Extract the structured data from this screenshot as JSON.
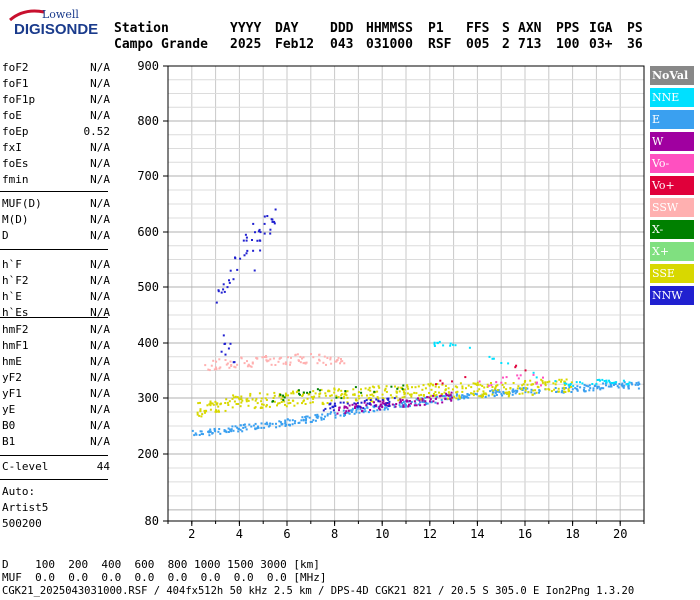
{
  "logo": {
    "line1": "Lowell",
    "line2": "DIGISONDE"
  },
  "header": {
    "labels": [
      "Station",
      "YYYY",
      "DAY",
      "DDD",
      "HHMMSS",
      "P1",
      "FFS",
      "S",
      "AXN",
      "PPS",
      "IGA",
      "PS"
    ],
    "values": [
      "Campo Grande",
      "2025",
      "Feb12",
      "043",
      "031000",
      "RSF",
      "005",
      "2",
      "713",
      "100",
      "03+",
      "36"
    ]
  },
  "params": [
    {
      "group": [
        {
          "name": "foF2",
          "value": "N/A"
        },
        {
          "name": "foF1",
          "value": "N/A"
        },
        {
          "name": "foF1p",
          "value": "N/A"
        },
        {
          "name": "foE",
          "value": "N/A"
        },
        {
          "name": "foEp",
          "value": "0.52"
        },
        {
          "name": "fxI",
          "value": "N/A"
        },
        {
          "name": "foEs",
          "value": "N/A"
        },
        {
          "name": "fmin",
          "value": "N/A"
        }
      ]
    },
    {
      "group": [
        {
          "name": "MUF(D)",
          "value": "N/A"
        },
        {
          "name": "M(D)",
          "value": "N/A"
        },
        {
          "name": "D",
          "value": "N/A"
        }
      ]
    },
    {
      "group": [
        {
          "name": "h`F",
          "value": "N/A"
        },
        {
          "name": "h`F2",
          "value": "N/A"
        },
        {
          "name": "h`E",
          "value": "N/A"
        },
        {
          "name": "h`Es",
          "value": "N/A"
        }
      ]
    },
    {
      "group": [
        {
          "name": "hmF2",
          "value": "N/A"
        },
        {
          "name": "hmF1",
          "value": "N/A"
        },
        {
          "name": "hmE",
          "value": "N/A"
        },
        {
          "name": "yF2",
          "value": "N/A"
        },
        {
          "name": "yF1",
          "value": "N/A"
        },
        {
          "name": "yE",
          "value": "N/A"
        },
        {
          "name": "B0",
          "value": "N/A"
        },
        {
          "name": "B1",
          "value": "N/A"
        }
      ]
    },
    {
      "group": [
        {
          "name": "C-level",
          "value": "44"
        }
      ]
    }
  ],
  "auto": [
    "Auto:",
    "Artist5",
    "500200"
  ],
  "footer": {
    "d_row": "D    100  200  400  600  800 1000 1500 3000 [km]",
    "muf_row": "MUF  0.0  0.0  0.0  0.0  0.0  0.0  0.0  0.0 [MHz]",
    "file_row": "CGK21_2025043031000.RSF / 404fx512h 50 kHz 2.5 km / DPS-4D CGK21 821 / 20.5 S 305.0 E Ion2Png 1.3.20"
  },
  "legend": [
    {
      "label": "NoVal",
      "bg": "#888888",
      "fg": "#ffffff"
    },
    {
      "label": "NNE",
      "bg": "#00e0ff",
      "fg": "#ffffff"
    },
    {
      "label": "E",
      "bg": "#3aa0f0",
      "fg": "#ffffff"
    },
    {
      "label": "W",
      "bg": "#a000a0",
      "fg": "#ffffff"
    },
    {
      "label": "Vo-",
      "bg": "#ff50c0",
      "fg": "#ffffff"
    },
    {
      "label": "Vo+",
      "bg": "#e0003a",
      "fg": "#ffffff"
    },
    {
      "label": "SSW",
      "bg": "#ffb0b0",
      "fg": "#ffffff"
    },
    {
      "label": "X-",
      "bg": "#008000",
      "fg": "#ffffff"
    },
    {
      "label": "X+",
      "bg": "#80e080",
      "fg": "#ffffff"
    },
    {
      "label": "SSE",
      "bg": "#d8d800",
      "fg": "#ffffff"
    },
    {
      "label": "NNW",
      "bg": "#2020d0",
      "fg": "#ffffff"
    }
  ],
  "chart_data": {
    "type": "scatter",
    "xlim": [
      1,
      21
    ],
    "ylim": [
      80,
      900
    ],
    "x_ticks": [
      2,
      4,
      6,
      8,
      10,
      12,
      14,
      16,
      18,
      20
    ],
    "y_ticks": [
      80,
      200,
      300,
      400,
      500,
      600,
      700,
      800,
      900
    ],
    "grid": true,
    "legend_position": "right",
    "traces": [
      {
        "series": "E",
        "points": [
          [
            2.0,
            238
          ],
          [
            3.0,
            242
          ],
          [
            4.0,
            248
          ],
          [
            5.0,
            252
          ],
          [
            6.0,
            258
          ],
          [
            7.0,
            265
          ],
          [
            8.0,
            272
          ],
          [
            9.0,
            280
          ],
          [
            10.0,
            286
          ],
          [
            11.0,
            292
          ],
          [
            12.0,
            298
          ],
          [
            13.0,
            304
          ],
          [
            14.0,
            308
          ],
          [
            15.0,
            312
          ],
          [
            16.0,
            315
          ],
          [
            18.0,
            318
          ],
          [
            19.0,
            322
          ],
          [
            20.0,
            325
          ],
          [
            20.8,
            325
          ]
        ],
        "spread": 6,
        "density": 22
      },
      {
        "series": "SSE",
        "points": [
          [
            2.2,
            280
          ],
          [
            3.0,
            290
          ],
          [
            4.0,
            295
          ],
          [
            5.0,
            298
          ],
          [
            6.0,
            300
          ],
          [
            7.0,
            303
          ],
          [
            8.0,
            306
          ],
          [
            9.0,
            308
          ],
          [
            10.0,
            310
          ],
          [
            11.0,
            312
          ],
          [
            12.0,
            314
          ],
          [
            13.0,
            315
          ],
          [
            14.0,
            316
          ],
          [
            15.0,
            318
          ],
          [
            16.0,
            320
          ],
          [
            17.0,
            322
          ],
          [
            18.0,
            322
          ]
        ],
        "spread": 14,
        "density": 26
      },
      {
        "series": "W",
        "points": [
          [
            8.0,
            278
          ],
          [
            9.0,
            285
          ],
          [
            10.0,
            290
          ],
          [
            11.0,
            292
          ],
          [
            12.0,
            298
          ],
          [
            13.0,
            305
          ]
        ],
        "spread": 8,
        "density": 18
      },
      {
        "series": "NNW",
        "points": [
          [
            7.5,
            285
          ],
          [
            8.5,
            290
          ],
          [
            9.5,
            292
          ],
          [
            10.5,
            295
          ]
        ],
        "spread": 8,
        "density": 14
      },
      {
        "series": "NNE",
        "points": [
          [
            12.0,
            400
          ],
          [
            13.0,
            401
          ],
          [
            17.5,
            325
          ],
          [
            18.5,
            330
          ],
          [
            19.5,
            332
          ],
          [
            20.5,
            330
          ]
        ],
        "spread": 4,
        "density": 10
      },
      {
        "series": "SSW",
        "points": [
          [
            2.5,
            360
          ],
          [
            3.5,
            365
          ],
          [
            4.5,
            368
          ],
          [
            5.5,
            370
          ],
          [
            6.5,
            372
          ],
          [
            7.5,
            372
          ],
          [
            8.5,
            372
          ]
        ],
        "spread": 10,
        "density": 16
      },
      {
        "series": "NNW",
        "points": [
          [
            3.0,
            470
          ],
          [
            3.5,
            520
          ],
          [
            4.0,
            560
          ],
          [
            4.5,
            590
          ],
          [
            5.0,
            610
          ],
          [
            5.5,
            630
          ],
          [
            3.2,
            400
          ],
          [
            3.8,
            380
          ]
        ],
        "spread": 25,
        "density": 8
      },
      {
        "series": "X-",
        "points": [
          [
            5.0,
            300
          ],
          [
            6.0,
            305
          ],
          [
            7.0,
            308
          ],
          [
            9.0,
            312
          ],
          [
            11.0,
            316
          ]
        ],
        "spread": 10,
        "density": 6
      },
      {
        "series": "Vo-",
        "points": [
          [
            14.0,
            330
          ],
          [
            15.0,
            332
          ],
          [
            16.0,
            335
          ],
          [
            17.0,
            332
          ]
        ],
        "spread": 10,
        "density": 5
      },
      {
        "series": "Vo+",
        "points": [
          [
            12.0,
            328
          ],
          [
            13.0,
            332
          ],
          [
            16.0,
            360
          ]
        ],
        "spread": 10,
        "density": 4
      }
    ]
  }
}
